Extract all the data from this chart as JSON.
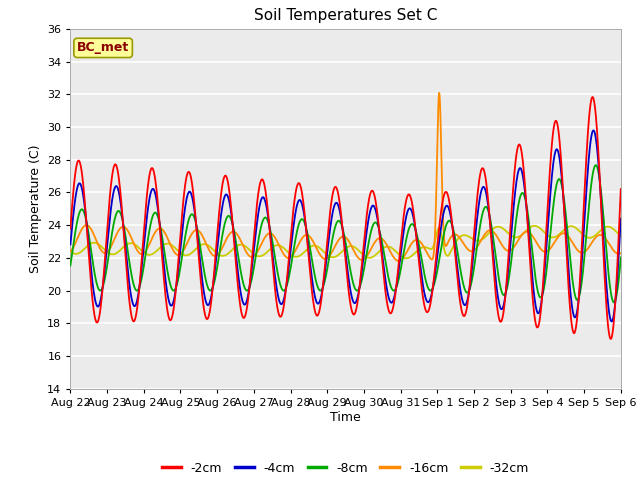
{
  "title": "Soil Temperatures Set C",
  "xlabel": "Time",
  "ylabel": "Soil Temperature (C)",
  "ylim": [
    14,
    36
  ],
  "yticks": [
    14,
    16,
    18,
    20,
    22,
    24,
    26,
    28,
    30,
    32,
    34,
    36
  ],
  "annotation": "BC_met",
  "annotation_text_color": "#8B0000",
  "annotation_bg": "#FFFF99",
  "annotation_border": "#999900",
  "colors": {
    "m2cm": "#FF0000",
    "m4cm": "#0000CC",
    "m8cm": "#00AA00",
    "m16cm": "#FF8C00",
    "m32cm": "#CCCC00"
  },
  "labels": {
    "m2cm": "-2cm",
    "m4cm": "-4cm",
    "m8cm": "-8cm",
    "m16cm": "-16cm",
    "m32cm": "-32cm"
  },
  "line_width": 1.3,
  "fig_bg": "#FFFFFF",
  "plot_bg": "#EBEBEB",
  "grid_color": "#FFFFFF",
  "tick_labels": [
    "Aug 22",
    "Aug 23",
    "Aug 24",
    "Aug 25",
    "Aug 26",
    "Aug 27",
    "Aug 28",
    "Aug 29",
    "Aug 30",
    "Aug 31",
    "Sep 1",
    "Sep 2",
    "Sep 3",
    "Sep 4",
    "Sep 5",
    "Sep 6"
  ]
}
